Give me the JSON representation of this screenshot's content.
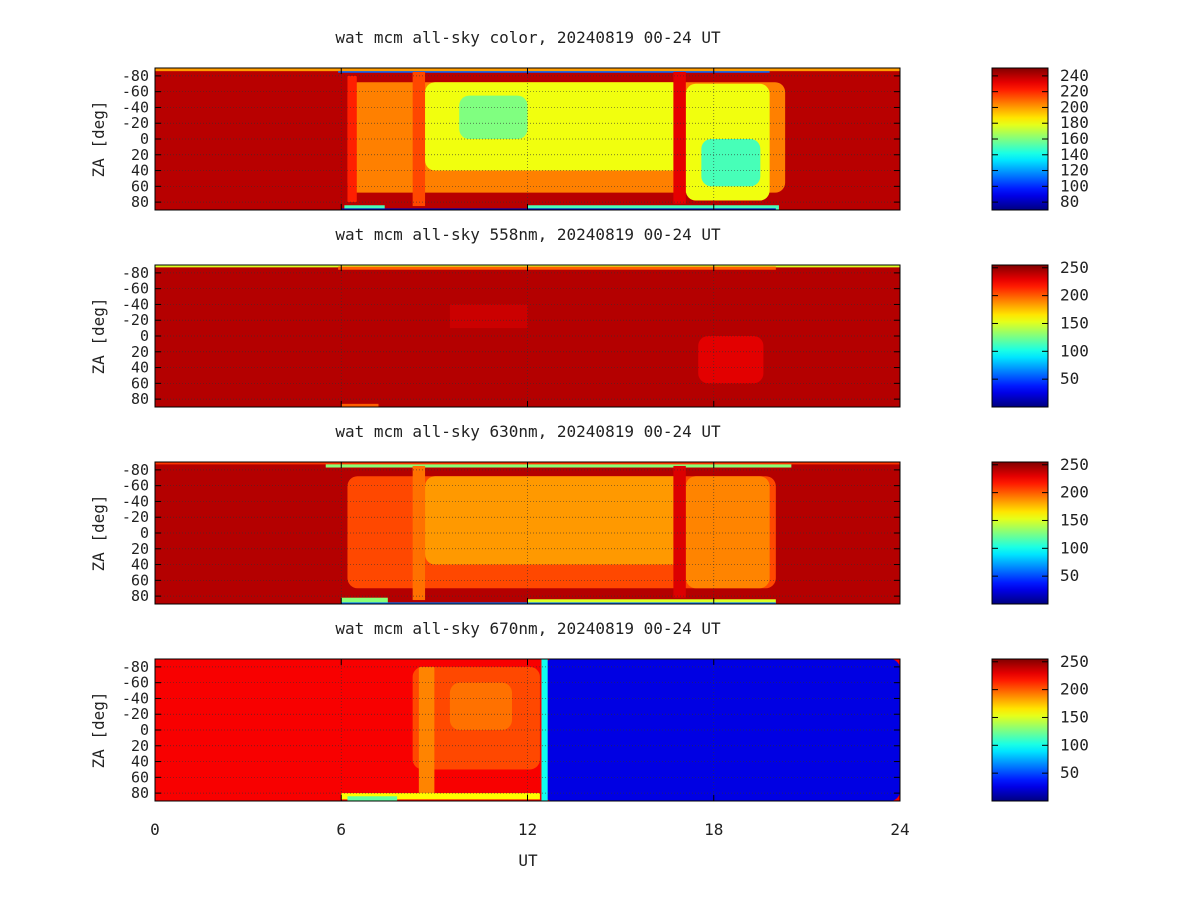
{
  "chart_data": [
    {
      "type": "heatmap",
      "title": "wat mcm all-sky color, 20240819 00-24 UT",
      "xlabel": "",
      "ylabel": "ZA [deg]",
      "xlim": [
        0,
        24
      ],
      "ylim": [
        -90,
        90
      ],
      "x_ticks": [
        "0",
        "6",
        "12",
        "18",
        "24"
      ],
      "y_ticks": [
        "-80",
        "-60",
        "-40",
        "-20",
        "0",
        "20",
        "40",
        "60",
        "80"
      ],
      "grid": true,
      "colorbar": {
        "min": 70,
        "max": 250,
        "ticks": [
          "80",
          "100",
          "120",
          "140",
          "160",
          "180",
          "200",
          "220",
          "240"
        ]
      },
      "background_value": 240,
      "regions": [
        {
          "x": [
            5.9,
            19.8
          ],
          "za": [
            -90,
            -84
          ],
          "value": 110
        },
        {
          "x": [
            0,
            24
          ],
          "za": [
            -90,
            -86
          ],
          "value": 200
        },
        {
          "x": [
            6.2,
            20.3
          ],
          "za": [
            -72,
            68
          ],
          "value": 205
        },
        {
          "x": [
            6.2,
            6.5
          ],
          "za": [
            -80,
            80
          ],
          "value": 222
        },
        {
          "x": [
            8.3,
            8.7
          ],
          "za": [
            -85,
            85
          ],
          "value": 215
        },
        {
          "x": [
            8.7,
            17.0
          ],
          "za": [
            -72,
            40
          ],
          "value": 180
        },
        {
          "x": [
            9.8,
            12.0
          ],
          "za": [
            -55,
            0
          ],
          "value": 160
        },
        {
          "x": [
            17.1,
            19.8
          ],
          "za": [
            -70,
            78
          ],
          "value": 180
        },
        {
          "x": [
            17.6,
            19.5
          ],
          "za": [
            0,
            60
          ],
          "value": 150
        },
        {
          "x": [
            16.7,
            17.1
          ],
          "za": [
            -85,
            82
          ],
          "value": 232
        },
        {
          "x": [
            6.1,
            7.4
          ],
          "za": [
            84,
            90
          ],
          "value": 150
        },
        {
          "x": [
            12.0,
            20.1
          ],
          "za": [
            84,
            90
          ],
          "value": 150
        },
        {
          "x": [
            6.0,
            20.0
          ],
          "za": [
            88,
            90
          ],
          "value": 80
        }
      ]
    },
    {
      "type": "heatmap",
      "title": "wat mcm all-sky 558nm, 20240819 00-24 UT",
      "xlabel": "",
      "ylabel": "ZA [deg]",
      "xlim": [
        0,
        24
      ],
      "ylim": [
        -90,
        90
      ],
      "x_ticks": [
        "0",
        "6",
        "12",
        "18",
        "24"
      ],
      "y_ticks": [
        "-80",
        "-60",
        "-40",
        "-20",
        "0",
        "20",
        "40",
        "60",
        "80"
      ],
      "grid": true,
      "colorbar": {
        "min": 0,
        "max": 255,
        "ticks": [
          "50",
          "100",
          "150",
          "200",
          "250"
        ]
      },
      "background_value": 242,
      "regions": [
        {
          "x": [
            0,
            24
          ],
          "za": [
            -90,
            -87
          ],
          "value": 150
        },
        {
          "x": [
            5.9,
            20.0
          ],
          "za": [
            -88,
            -84
          ],
          "value": 200
        },
        {
          "x": [
            9.5,
            12.0
          ],
          "za": [
            -40,
            -10
          ],
          "value": 236
        },
        {
          "x": [
            17.5,
            19.6
          ],
          "za": [
            0,
            60
          ],
          "value": 230
        },
        {
          "x": [
            6.0,
            7.2
          ],
          "za": [
            86,
            90
          ],
          "value": 200
        }
      ]
    },
    {
      "type": "heatmap",
      "title": "wat mcm all-sky 630nm, 20240819 00-24 UT",
      "xlabel": "",
      "ylabel": "ZA [deg]",
      "xlim": [
        0,
        24
      ],
      "ylim": [
        -90,
        90
      ],
      "x_ticks": [
        "0",
        "6",
        "12",
        "18",
        "24"
      ],
      "y_ticks": [
        "-80",
        "-60",
        "-40",
        "-20",
        "0",
        "20",
        "40",
        "60",
        "80"
      ],
      "grid": true,
      "colorbar": {
        "min": 0,
        "max": 255,
        "ticks": [
          "50",
          "100",
          "150",
          "200",
          "250"
        ]
      },
      "background_value": 242,
      "regions": [
        {
          "x": [
            5.5,
            20.5
          ],
          "za": [
            -90,
            -83
          ],
          "value": 130
        },
        {
          "x": [
            0,
            24
          ],
          "za": [
            -90,
            -87
          ],
          "value": 210
        },
        {
          "x": [
            6.2,
            20.0
          ],
          "za": [
            -72,
            70
          ],
          "value": 205
        },
        {
          "x": [
            8.3,
            8.7
          ],
          "za": [
            -85,
            85
          ],
          "value": 195
        },
        {
          "x": [
            8.7,
            17.0
          ],
          "za": [
            -72,
            40
          ],
          "value": 185
        },
        {
          "x": [
            17.1,
            19.8
          ],
          "za": [
            -72,
            70
          ],
          "value": 190
        },
        {
          "x": [
            16.7,
            17.1
          ],
          "za": [
            -85,
            82
          ],
          "value": 232
        },
        {
          "x": [
            6.0,
            7.5
          ],
          "za": [
            82,
            90
          ],
          "value": 130
        },
        {
          "x": [
            12.0,
            20.0
          ],
          "za": [
            84,
            90
          ],
          "value": 150
        },
        {
          "x": [
            6.0,
            20.0
          ],
          "za": [
            88,
            90
          ],
          "value": 60
        }
      ]
    },
    {
      "type": "heatmap",
      "title": "wat mcm all-sky 670nm, 20240819 00-24 UT",
      "xlabel": "UT",
      "ylabel": "ZA [deg]",
      "xlim": [
        0,
        24
      ],
      "ylim": [
        -90,
        90
      ],
      "x_ticks": [
        "0",
        "6",
        "12",
        "18",
        "24"
      ],
      "y_ticks": [
        "-80",
        "-60",
        "-40",
        "-20",
        "0",
        "20",
        "40",
        "60",
        "80"
      ],
      "grid": true,
      "colorbar": {
        "min": 0,
        "max": 255,
        "ticks": [
          "50",
          "100",
          "150",
          "200",
          "250"
        ]
      },
      "background_value": 225,
      "regions": [
        {
          "x": [
            12.5,
            24
          ],
          "za": [
            -90,
            90
          ],
          "value": 25
        },
        {
          "x": [
            12.45,
            12.65
          ],
          "za": [
            -90,
            90
          ],
          "value": 100
        },
        {
          "x": [
            8.3,
            12.4
          ],
          "za": [
            -80,
            50
          ],
          "value": 205
        },
        {
          "x": [
            8.5,
            9.0
          ],
          "za": [
            -80,
            85
          ],
          "value": 190
        },
        {
          "x": [
            9.5,
            11.5
          ],
          "za": [
            -60,
            0
          ],
          "value": 195
        },
        {
          "x": [
            6.0,
            12.4
          ],
          "za": [
            80,
            88
          ],
          "value": 160
        },
        {
          "x": [
            6.2,
            7.8
          ],
          "za": [
            84,
            90
          ],
          "value": 120
        }
      ]
    }
  ]
}
